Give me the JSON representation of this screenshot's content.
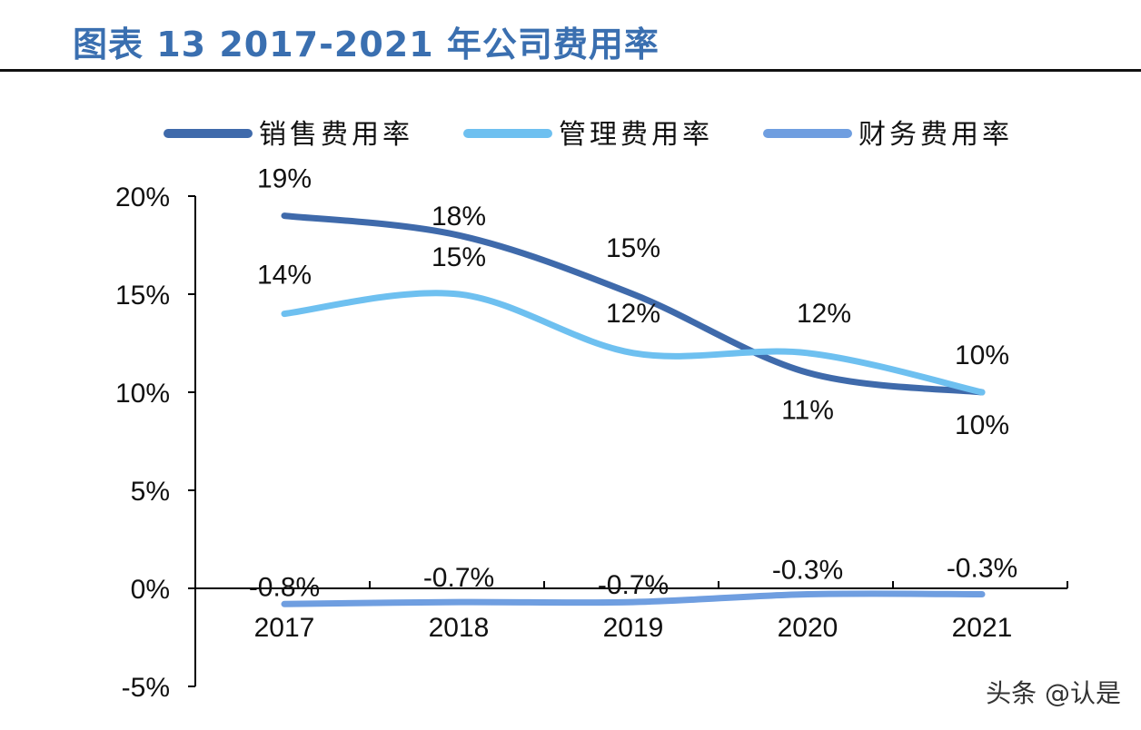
{
  "title": "图表 13 2017-2021 年公司费用率",
  "watermark": "头条 @认是",
  "chart_data": {
    "type": "line",
    "title": "图表 13 2017-2021 年公司费用率",
    "categories": [
      "2017",
      "2018",
      "2019",
      "2020",
      "2021"
    ],
    "ylim": [
      -5,
      20
    ],
    "yticks": [
      -5,
      0,
      5,
      10,
      15,
      20
    ],
    "ytick_labels": [
      "-5%",
      "0%",
      "5%",
      "10%",
      "15%",
      "20%"
    ],
    "grid": false,
    "legend": "top",
    "series": [
      {
        "name": "销售费用率",
        "values": [
          19,
          18,
          15,
          11,
          10
        ],
        "labels": [
          "19%",
          "18%",
          "15%",
          "11%",
          "10%"
        ],
        "color": "#3f6aab"
      },
      {
        "name": "管理费用率",
        "values": [
          14,
          15,
          12,
          12,
          10
        ],
        "labels": [
          "14%",
          "15%",
          "12%",
          "12%",
          "10%"
        ],
        "color": "#6ec0f0"
      },
      {
        "name": "财务费用率",
        "values": [
          -0.8,
          -0.7,
          -0.7,
          -0.3,
          -0.3
        ],
        "labels": [
          "-0.8%",
          "-0.7%",
          "-0.7%",
          "-0.3%",
          "-0.3%"
        ],
        "color": "#6f9ee0"
      }
    ]
  }
}
